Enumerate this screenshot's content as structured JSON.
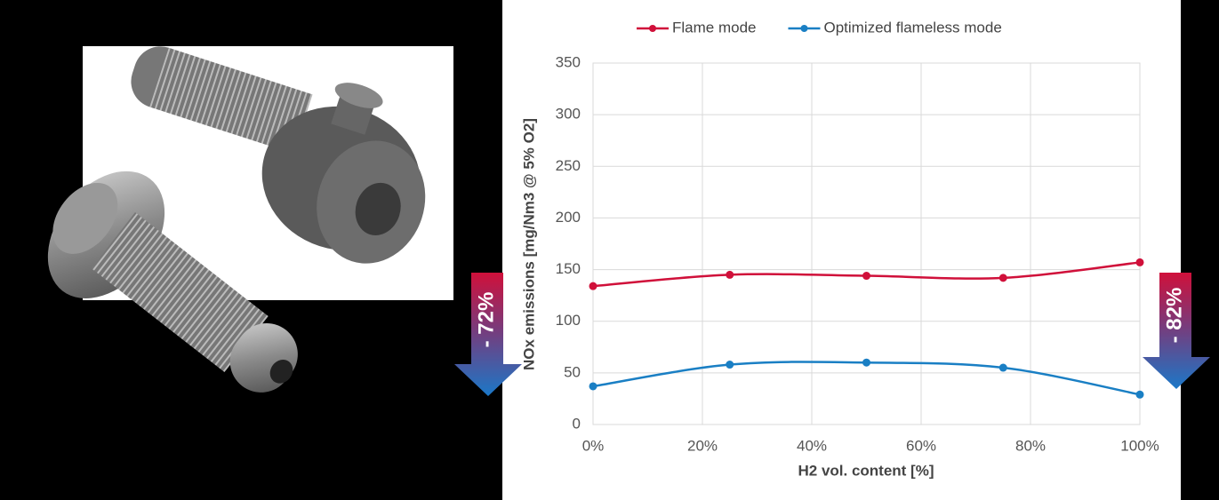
{
  "chart_data": {
    "type": "line",
    "x_label": "H2 vol. content [%]",
    "y_label": "NOx emissions [mg/Nm3 @ 5% O2]",
    "x": [
      0,
      25,
      50,
      75,
      100
    ],
    "series": [
      {
        "name": "Flame mode",
        "color": "#d0103a",
        "values": [
          134,
          145,
          144,
          142,
          157
        ]
      },
      {
        "name": "Optimized flameless mode",
        "color": "#1a7fc4",
        "values": [
          37,
          58,
          60,
          55,
          29
        ]
      }
    ],
    "xlim": [
      0,
      100
    ],
    "xticks": [
      {
        "value": 0,
        "label": "0%"
      },
      {
        "value": 20,
        "label": "20%"
      },
      {
        "value": 40,
        "label": "40%"
      },
      {
        "value": 60,
        "label": "60%"
      },
      {
        "value": 80,
        "label": "80%"
      },
      {
        "value": 100,
        "label": "100%"
      }
    ],
    "ylim": [
      0,
      350
    ],
    "yticks": [
      0,
      50,
      100,
      150,
      200,
      250,
      300,
      350
    ],
    "grid": true,
    "legend": "top",
    "annotations": [
      "- 72%",
      "- 82%"
    ]
  }
}
